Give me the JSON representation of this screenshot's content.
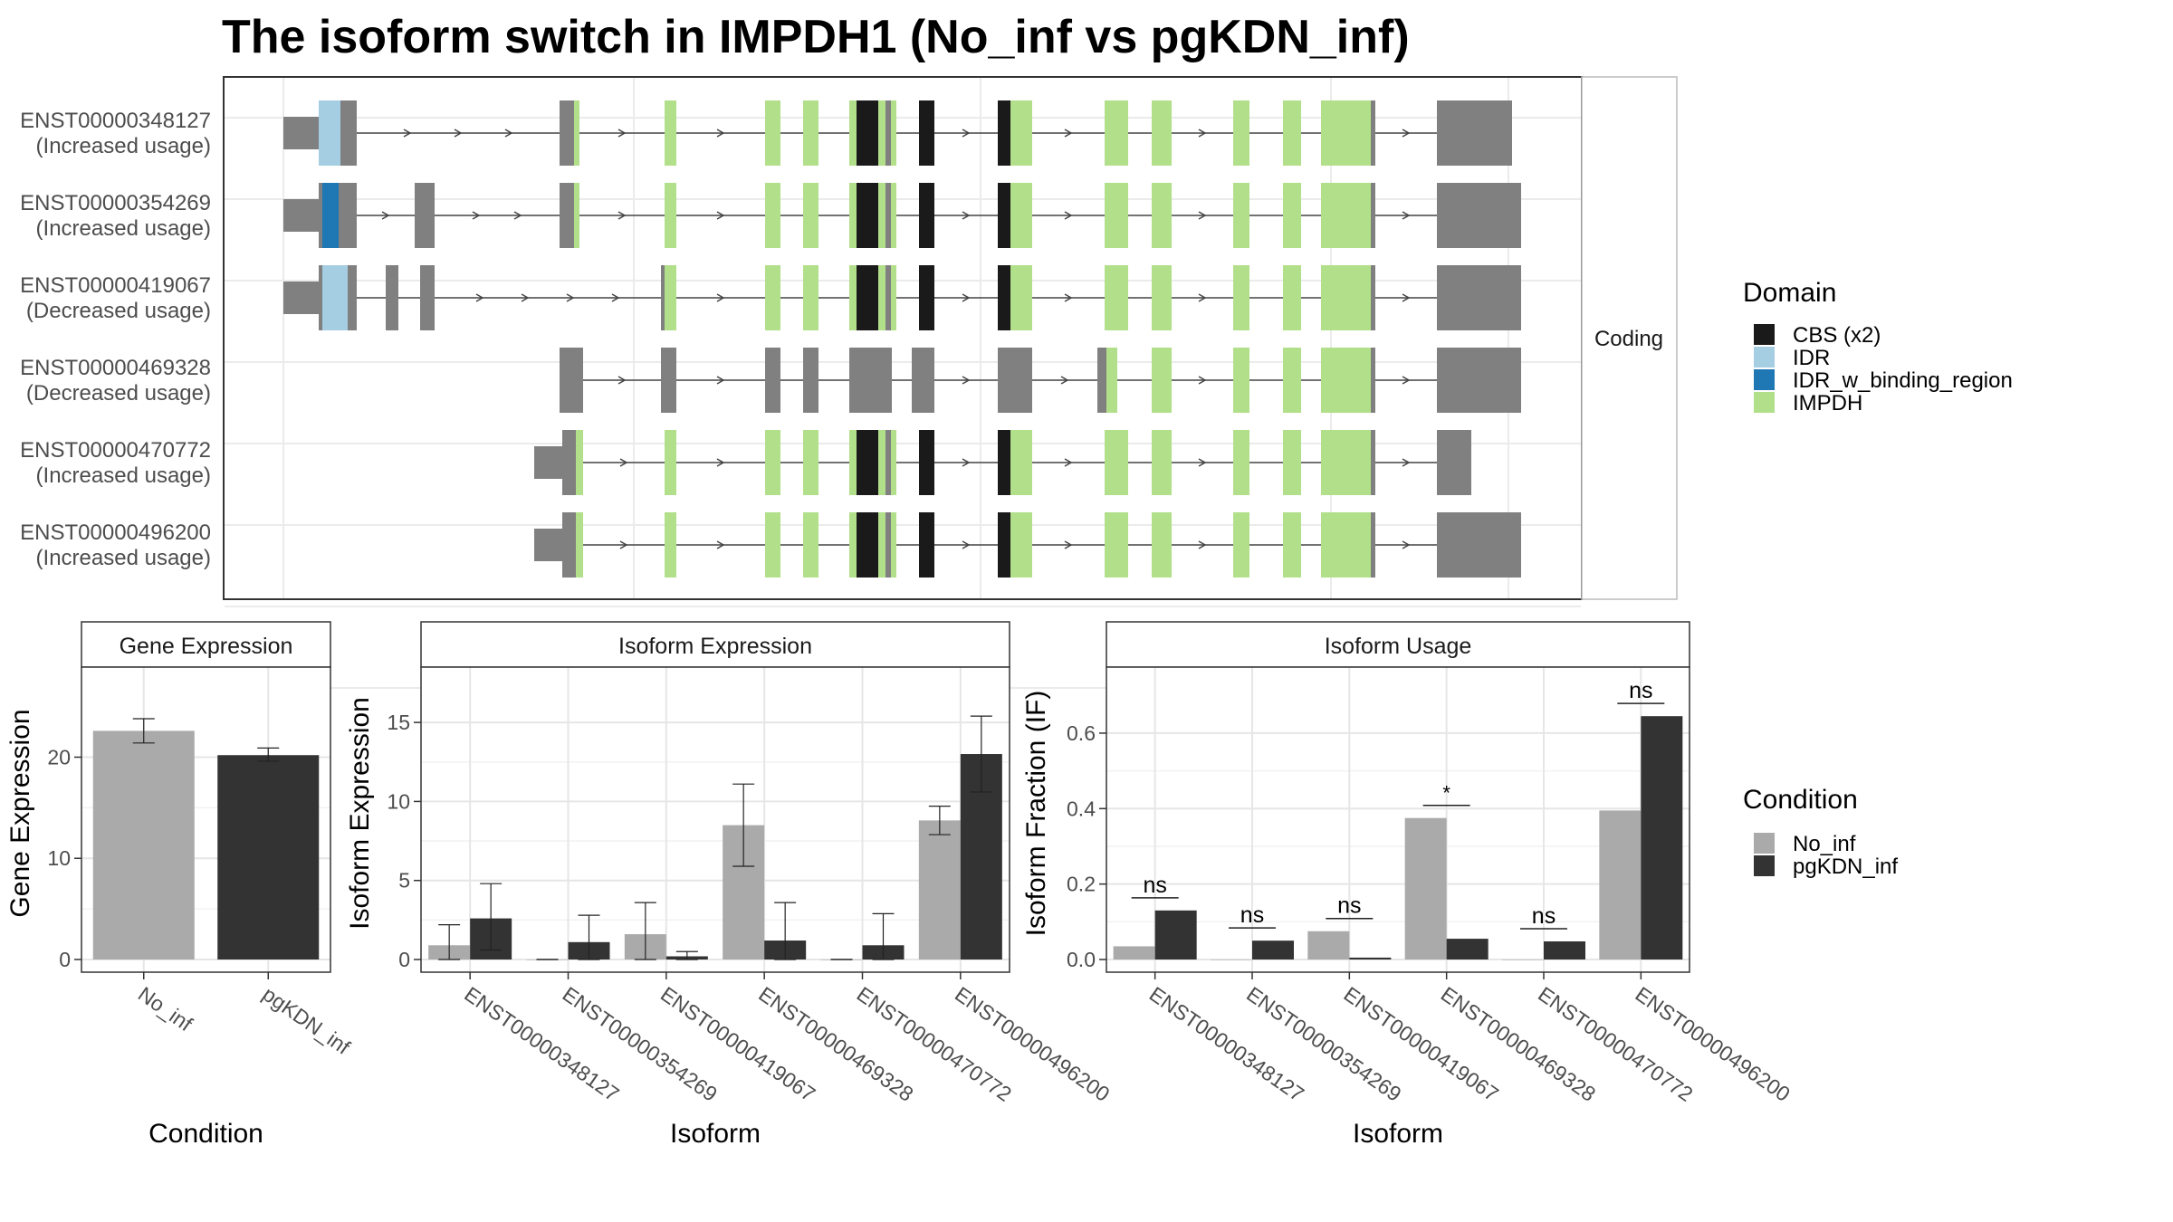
{
  "title": "The isoform switch in IMPDH1 (No_inf vs pgKDN_inf)",
  "domain_colors": {
    "CBS (x2)": "#1a1a1a",
    "IDR": "#a6cee3",
    "IDR_w_binding_region": "#1f78b4",
    "IMPDH": "#b2df8a",
    "none": "#808080"
  },
  "condition_colors": {
    "No_inf": "#aaaaaa",
    "pgKDN_inf": "#333333"
  },
  "legends": {
    "domain": {
      "title": "Domain",
      "items": [
        "CBS (x2)",
        "IDR",
        "IDR_w_binding_region",
        "IMPDH"
      ]
    },
    "condition": {
      "title": "Condition",
      "items": [
        "No_inf",
        "pgKDN_inf"
      ]
    }
  },
  "structure_panel": {
    "strip_label": "Coding"
  },
  "chart_data": [
    {
      "type": "gene_structure",
      "transcripts": [
        {
          "id": "ENST00000348127",
          "label": "(Increased usage)"
        },
        {
          "id": "ENST00000354269",
          "label": "(Increased usage)"
        },
        {
          "id": "ENST00000419067",
          "label": "(Decreased usage)"
        },
        {
          "id": "ENST00000469328",
          "label": "(Decreased usage)"
        },
        {
          "id": "ENST00000470772",
          "label": "(Increased usage)"
        },
        {
          "id": "ENST00000496200",
          "label": "(Increased usage)"
        }
      ]
    },
    {
      "type": "bar",
      "title": "Gene Expression",
      "xlabel": "Condition",
      "ylabel": "Gene Expression",
      "categories": [
        "No_inf",
        "pgKDN_inf"
      ],
      "values": [
        22.6,
        20.2
      ],
      "errors": [
        [
          21.4,
          23.8
        ],
        [
          19.6,
          20.9
        ]
      ],
      "ylim": [
        0,
        28.9
      ],
      "yticks": [
        0,
        10,
        20
      ]
    },
    {
      "type": "bar",
      "title": "Isoform Expression",
      "xlabel": "Isoform",
      "ylabel": "Isoform Expression",
      "categories": [
        "ENST00000348127",
        "ENST00000354269",
        "ENST00000419067",
        "ENST00000469328",
        "ENST00000470772",
        "ENST00000496200"
      ],
      "series": [
        {
          "name": "No_inf",
          "values": [
            0.9,
            0.0,
            1.6,
            8.5,
            0.0,
            8.8
          ],
          "errors": [
            [
              0.0,
              2.2
            ],
            [
              0.0,
              0.0
            ],
            [
              0.0,
              3.6
            ],
            [
              5.9,
              11.1
            ],
            [
              0.0,
              0.0
            ],
            [
              7.9,
              9.7
            ]
          ]
        },
        {
          "name": "pgKDN_inf",
          "values": [
            2.6,
            1.1,
            0.2,
            1.2,
            0.9,
            13.0
          ],
          "errors": [
            [
              0.6,
              4.8
            ],
            [
              0.0,
              2.8
            ],
            [
              0.0,
              0.5
            ],
            [
              0.0,
              3.6
            ],
            [
              0.0,
              2.9
            ],
            [
              10.6,
              15.4
            ]
          ]
        }
      ],
      "ylim": [
        0,
        18.5
      ],
      "yticks": [
        0,
        5,
        10,
        15
      ]
    },
    {
      "type": "bar",
      "title": "Isoform Usage",
      "xlabel": "Isoform",
      "ylabel": "Isoform Fraction (IF)",
      "categories": [
        "ENST00000348127",
        "ENST00000354269",
        "ENST00000419067",
        "ENST00000469328",
        "ENST00000470772",
        "ENST00000496200"
      ],
      "series": [
        {
          "name": "No_inf",
          "values": [
            0.035,
            0.0,
            0.075,
            0.375,
            0.0,
            0.395
          ]
        },
        {
          "name": "pgKDN_inf",
          "values": [
            0.13,
            0.05,
            0.005,
            0.055,
            0.048,
            0.645
          ]
        }
      ],
      "significance": [
        "ns",
        "ns",
        "ns",
        "*",
        "ns",
        "ns"
      ],
      "ylim": [
        0,
        0.775
      ],
      "yticks": [
        0.0,
        0.2,
        0.4,
        0.6
      ]
    }
  ]
}
